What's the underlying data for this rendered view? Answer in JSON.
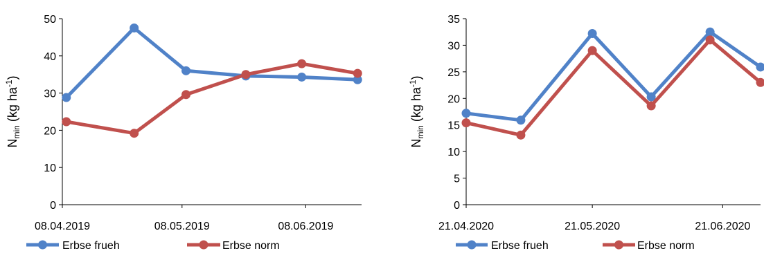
{
  "colors": {
    "series_1": "#5082C8",
    "series_2": "#C0504D",
    "axis": "#000000"
  },
  "chart_data": [
    {
      "type": "line",
      "ylabel_main": "N",
      "ylabel_sub": "min",
      "ylabel_units": " (kg ha",
      "ylabel_sup": "-1",
      "ylabel_close": ")",
      "ylim": [
        0,
        50
      ],
      "yticks": [
        0,
        10,
        20,
        30,
        40,
        50
      ],
      "xlim": [
        "2019-04-08",
        "2019-06-22"
      ],
      "xticks": [
        {
          "date": "2019-04-08",
          "label": "08.04.2019"
        },
        {
          "date": "2019-05-08",
          "label": "08.05.2019"
        },
        {
          "date": "2019-06-08",
          "label": "08.06.2019"
        }
      ],
      "legend": "bottom",
      "grid": false,
      "series": [
        {
          "name": "Erbse frueh",
          "x": [
            "2019-04-09",
            "2019-04-26",
            "2019-05-09",
            "2019-05-24",
            "2019-06-07",
            "2019-06-21"
          ],
          "y": [
            28.8,
            47.5,
            36.0,
            34.6,
            34.3,
            33.6
          ]
        },
        {
          "name": "Erbse norm",
          "x": [
            "2019-04-09",
            "2019-04-26",
            "2019-05-09",
            "2019-05-24",
            "2019-06-07",
            "2019-06-21"
          ],
          "y": [
            22.3,
            19.2,
            29.6,
            35.0,
            37.9,
            35.3
          ]
        }
      ]
    },
    {
      "type": "line",
      "ylabel_main": "N",
      "ylabel_sub": "min",
      "ylabel_units": " (kg ha",
      "ylabel_sup": "-1",
      "ylabel_close": ")",
      "ylim": [
        0,
        35
      ],
      "yticks": [
        0,
        5,
        10,
        15,
        20,
        25,
        30,
        35
      ],
      "xlim": [
        "2020-04-21",
        "2020-06-30"
      ],
      "xticks": [
        {
          "date": "2020-04-21",
          "label": "21.04.2020"
        },
        {
          "date": "2020-05-21",
          "label": "21.05.2020"
        },
        {
          "date": "2020-06-21",
          "label": "21.06.2020"
        }
      ],
      "legend": "bottom",
      "grid": false,
      "series": [
        {
          "name": "Erbse frueh",
          "x": [
            "2020-04-21",
            "2020-05-04",
            "2020-05-21",
            "2020-06-04",
            "2020-06-18",
            "2020-06-30"
          ],
          "y": [
            17.2,
            15.9,
            32.2,
            20.3,
            32.5,
            25.9
          ]
        },
        {
          "name": "Erbse norm",
          "x": [
            "2020-04-21",
            "2020-05-04",
            "2020-05-21",
            "2020-06-04",
            "2020-06-18",
            "2020-06-30"
          ],
          "y": [
            15.4,
            13.1,
            29.0,
            18.6,
            31.0,
            23.0
          ]
        }
      ]
    }
  ]
}
